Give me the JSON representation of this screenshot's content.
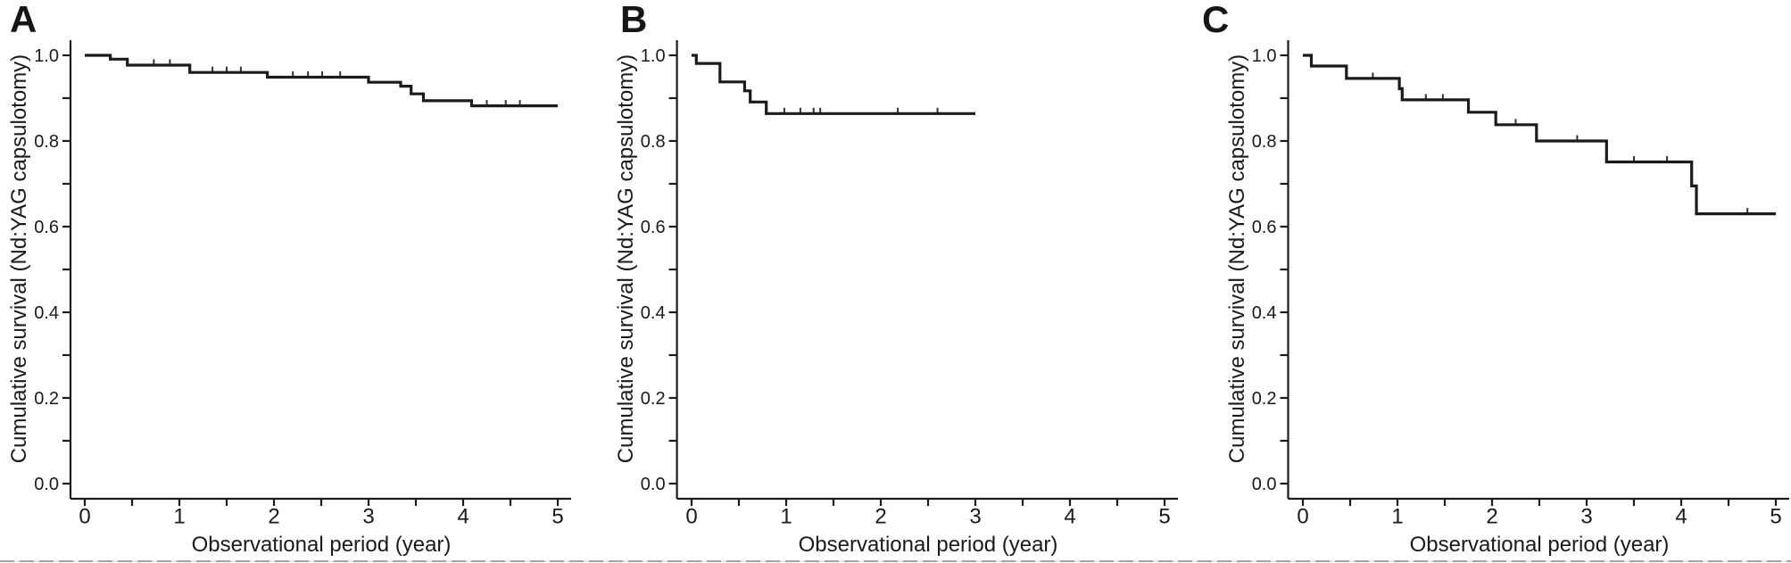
{
  "figure": {
    "background_color": "#ffffff",
    "curve_color": "#1b1b1b",
    "axis_color": "#1b1b1b",
    "bottom_edge_line_color": "#a2a2a2",
    "panel_letters": [
      "A",
      "B",
      "C"
    ]
  },
  "chart_data": [
    {
      "type": "line",
      "subtype": "kaplan_meier_step_curve",
      "panel_label": "A",
      "title": "",
      "xlabel": "Observational period (year)",
      "ylabel": "Cumulative survival (Nd:YAG capsulotomy)",
      "xlim": [
        0,
        5
      ],
      "ylim": [
        0.0,
        1.0
      ],
      "grid": "off",
      "legend": "none",
      "x_tick_labels": [
        "0",
        "1",
        "2",
        "3",
        "4",
        "5"
      ],
      "x_tick_values": [
        0,
        1,
        2,
        3,
        4,
        5
      ],
      "x_minor_tick_step": 0.5,
      "y_tick_labels": [
        "0.0",
        "0.2",
        "0.4",
        "0.6",
        "0.8",
        "1.0"
      ],
      "y_tick_values": [
        0.0,
        0.2,
        0.4,
        0.6,
        0.8,
        1.0
      ],
      "y_minor_tick_step": 0.1,
      "curve_start_year": 0.0,
      "curve_end_year": 5.0,
      "final_survival": 0.882,
      "steps": [
        {
          "year": 0.0,
          "survival": 1.0
        },
        {
          "year": 0.27,
          "survival": 0.991
        },
        {
          "year": 0.45,
          "survival": 0.977
        },
        {
          "year": 1.11,
          "survival": 0.96
        },
        {
          "year": 1.93,
          "survival": 0.949
        },
        {
          "year": 3.0,
          "survival": 0.937
        },
        {
          "year": 3.34,
          "survival": 0.928
        },
        {
          "year": 3.45,
          "survival": 0.91
        },
        {
          "year": 3.58,
          "survival": 0.894
        },
        {
          "year": 4.09,
          "survival": 0.882
        }
      ],
      "censor_tick_years": [
        0.73,
        0.9,
        1.35,
        1.5,
        1.65,
        2.2,
        2.36,
        2.51,
        2.7,
        4.25,
        4.45,
        4.6
      ]
    },
    {
      "type": "line",
      "subtype": "kaplan_meier_step_curve",
      "panel_label": "B",
      "title": "",
      "xlabel": "Observational period (year)",
      "ylabel": "Cumulative survival (Nd:YAG capsulotomy)",
      "xlim": [
        0,
        5
      ],
      "ylim": [
        0.0,
        1.0
      ],
      "grid": "off",
      "legend": "none",
      "x_tick_labels": [
        "0",
        "1",
        "2",
        "3",
        "4",
        "5"
      ],
      "x_tick_values": [
        0,
        1,
        2,
        3,
        4,
        5
      ],
      "x_minor_tick_step": 0.5,
      "y_tick_labels": [
        "0.0",
        "0.2",
        "0.4",
        "0.6",
        "0.8",
        "1.0"
      ],
      "y_tick_values": [
        0.0,
        0.2,
        0.4,
        0.6,
        0.8,
        1.0
      ],
      "y_minor_tick_step": 0.1,
      "curve_start_year": 0.0,
      "curve_end_year": 3.0,
      "final_survival": 0.864,
      "steps": [
        {
          "year": 0.0,
          "survival": 1.0
        },
        {
          "year": 0.05,
          "survival": 0.981
        },
        {
          "year": 0.3,
          "survival": 0.938
        },
        {
          "year": 0.56,
          "survival": 0.917
        },
        {
          "year": 0.62,
          "survival": 0.891
        },
        {
          "year": 0.79,
          "survival": 0.864
        }
      ],
      "censor_tick_years": [
        0.98,
        1.15,
        1.29,
        1.36,
        2.18,
        2.6
      ]
    },
    {
      "type": "line",
      "subtype": "kaplan_meier_step_curve",
      "panel_label": "C",
      "title": "",
      "xlabel": "Observational period (year)",
      "ylabel": "Cumulative survival (Nd:YAG capsulotomy)",
      "xlim": [
        0,
        5
      ],
      "ylim": [
        0.0,
        1.0
      ],
      "grid": "off",
      "legend": "none",
      "x_tick_labels": [
        "0",
        "1",
        "2",
        "3",
        "4",
        "5"
      ],
      "x_tick_values": [
        0,
        1,
        2,
        3,
        4,
        5
      ],
      "x_minor_tick_step": 0.5,
      "y_tick_labels": [
        "0.0",
        "0.2",
        "0.4",
        "0.6",
        "0.8",
        "1.0"
      ],
      "y_tick_values": [
        0.0,
        0.2,
        0.4,
        0.6,
        0.8,
        1.0
      ],
      "y_minor_tick_step": 0.1,
      "curve_start_year": 0.0,
      "curve_end_year": 5.0,
      "final_survival": 0.63,
      "steps": [
        {
          "year": 0.0,
          "survival": 1.0
        },
        {
          "year": 0.09,
          "survival": 0.975
        },
        {
          "year": 0.46,
          "survival": 0.946
        },
        {
          "year": 1.02,
          "survival": 0.922
        },
        {
          "year": 1.05,
          "survival": 0.896
        },
        {
          "year": 1.75,
          "survival": 0.867
        },
        {
          "year": 2.04,
          "survival": 0.838
        },
        {
          "year": 2.47,
          "survival": 0.8
        },
        {
          "year": 3.21,
          "survival": 0.751
        },
        {
          "year": 4.11,
          "survival": 0.695
        },
        {
          "year": 4.16,
          "survival": 0.63
        }
      ],
      "censor_tick_years": [
        0.74,
        1.3,
        1.48,
        2.25,
        2.9,
        3.5,
        3.85,
        4.7
      ]
    }
  ]
}
